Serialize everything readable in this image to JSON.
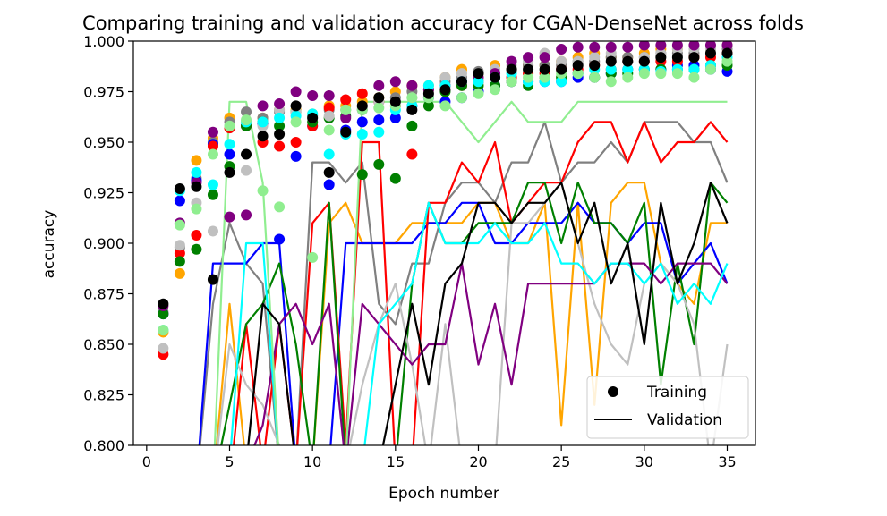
{
  "chart_data": {
    "type": "scatter+line",
    "title": "Comparing training and validation accuracy for CGAN-DenseNet across folds",
    "xlabel": "Epoch number",
    "ylabel": "accuracy",
    "xlim": [
      -0.8,
      36.7
    ],
    "ylim": [
      0.8,
      1.0
    ],
    "xticks": [
      0,
      5,
      10,
      15,
      20,
      25,
      30,
      35
    ],
    "yticks": [
      0.8,
      0.825,
      0.85,
      0.875,
      0.9,
      0.925,
      0.95,
      0.975,
      1.0
    ],
    "ytick_labels": [
      "0.800",
      "0.825",
      "0.850",
      "0.875",
      "0.900",
      "0.925",
      "0.950",
      "0.975",
      "1.000"
    ],
    "grid": false,
    "legend": {
      "placement": "lower-right",
      "entries": [
        {
          "label": "Training",
          "marker": "circle",
          "color": "#000000"
        },
        {
          "label": "Validation",
          "marker": "line",
          "color": "#000000"
        }
      ]
    },
    "series": [
      {
        "color": "#ffa500",
        "training": [
          0.856,
          0.885,
          0.941,
          0.952,
          0.962,
          0.958,
          0.962,
          0.966,
          0.966,
          0.964,
          0.968,
          0.968,
          0.97,
          0.972,
          0.975,
          0.978,
          0.978,
          0.982,
          0.986,
          0.984,
          0.988,
          0.986,
          0.988,
          0.988,
          0.99,
          0.992,
          0.994,
          0.992,
          0.992,
          0.994,
          0.996,
          0.996,
          0.992,
          0.996,
          0.998
        ],
        "validation": [
          0.78,
          0.78,
          0.78,
          0.78,
          0.87,
          0.79,
          0.79,
          0.79,
          0.79,
          0.79,
          0.91,
          0.92,
          0.9,
          0.9,
          0.9,
          0.91,
          0.91,
          0.91,
          0.91,
          0.92,
          0.92,
          0.9,
          0.9,
          0.92,
          0.81,
          0.92,
          0.82,
          0.92,
          0.93,
          0.93,
          0.89,
          0.88,
          0.87,
          0.91,
          0.91
        ]
      },
      {
        "color": "#808080",
        "training": [
          0.866,
          0.898,
          0.932,
          0.95,
          0.96,
          0.965,
          0.962,
          0.965,
          0.968,
          0.963,
          0.966,
          0.966,
          0.968,
          0.97,
          0.972,
          0.975,
          0.976,
          0.98,
          0.982,
          0.985,
          0.984,
          0.986,
          0.988,
          0.988,
          0.988,
          0.99,
          0.99,
          0.992,
          0.992,
          0.992,
          0.994,
          0.994,
          0.994,
          0.996,
          0.996
        ],
        "validation": [
          0.78,
          0.78,
          0.78,
          0.87,
          0.91,
          0.89,
          0.88,
          0.79,
          0.79,
          0.94,
          0.94,
          0.93,
          0.94,
          0.87,
          0.86,
          0.89,
          0.89,
          0.92,
          0.93,
          0.93,
          0.92,
          0.94,
          0.94,
          0.96,
          0.93,
          0.94,
          0.94,
          0.95,
          0.94,
          0.96,
          0.96,
          0.96,
          0.95,
          0.95,
          0.93
        ]
      },
      {
        "color": "#0000ff",
        "training": [
          0.865,
          0.921,
          0.931,
          0.949,
          0.944,
          0.958,
          0.959,
          0.902,
          0.943,
          0.958,
          0.929,
          0.956,
          0.96,
          0.961,
          0.962,
          0.968,
          0.972,
          0.97,
          0.972,
          0.975,
          0.978,
          0.98,
          0.98,
          0.98,
          0.98,
          0.982,
          0.982,
          0.984,
          0.986,
          0.986,
          0.986,
          0.988,
          0.988,
          0.986,
          0.985
        ],
        "validation": [
          0.78,
          0.78,
          0.78,
          0.89,
          0.89,
          0.89,
          0.9,
          0.9,
          0.79,
          0.79,
          0.79,
          0.9,
          0.9,
          0.9,
          0.9,
          0.9,
          0.91,
          0.91,
          0.92,
          0.92,
          0.9,
          0.9,
          0.91,
          0.91,
          0.91,
          0.92,
          0.91,
          0.91,
          0.9,
          0.91,
          0.91,
          0.88,
          0.89,
          0.9,
          0.88
        ]
      },
      {
        "color": "#ff0000",
        "training": [
          0.845,
          0.895,
          0.904,
          0.948,
          0.957,
          0.958,
          0.95,
          0.948,
          0.95,
          0.958,
          0.967,
          0.971,
          0.974,
          0.97,
          0.968,
          0.944,
          0.976,
          0.978,
          0.978,
          0.98,
          0.982,
          0.982,
          0.984,
          0.984,
          0.986,
          0.986,
          0.988,
          0.986,
          0.99,
          0.99,
          0.99,
          0.99,
          0.992,
          0.992,
          0.994
        ],
        "validation": [
          0.78,
          0.78,
          0.78,
          0.78,
          0.78,
          0.86,
          0.79,
          0.86,
          0.79,
          0.91,
          0.92,
          0.8,
          0.95,
          0.95,
          0.79,
          0.79,
          0.92,
          0.92,
          0.94,
          0.93,
          0.95,
          0.91,
          0.92,
          0.93,
          0.93,
          0.95,
          0.96,
          0.96,
          0.94,
          0.96,
          0.94,
          0.95,
          0.95,
          0.96,
          0.95
        ]
      },
      {
        "color": "#008000",
        "training": [
          0.865,
          0.891,
          0.897,
          0.924,
          0.938,
          0.958,
          0.96,
          0.958,
          0.965,
          0.96,
          0.962,
          0.963,
          0.934,
          0.939,
          0.932,
          0.958,
          0.968,
          0.975,
          0.978,
          0.978,
          0.978,
          0.98,
          0.978,
          0.982,
          0.982,
          0.984,
          0.982,
          0.984,
          0.984,
          0.986,
          0.986,
          0.986,
          0.986,
          0.988,
          0.988
        ],
        "validation": [
          0.78,
          0.78,
          0.78,
          0.78,
          0.82,
          0.86,
          0.87,
          0.89,
          0.85,
          0.79,
          0.92,
          0.79,
          0.79,
          0.79,
          0.79,
          0.88,
          0.92,
          0.9,
          0.9,
          0.91,
          0.91,
          0.91,
          0.93,
          0.93,
          0.9,
          0.93,
          0.91,
          0.91,
          0.9,
          0.92,
          0.83,
          0.89,
          0.85,
          0.93,
          0.92
        ]
      },
      {
        "color": "#c0c0c0",
        "training": [
          0.848,
          0.899,
          0.92,
          0.906,
          0.958,
          0.936,
          0.958,
          0.966,
          0.965,
          0.962,
          0.963,
          0.966,
          0.967,
          0.97,
          0.97,
          0.972,
          0.976,
          0.982,
          0.984,
          0.984,
          0.986,
          0.988,
          0.99,
          0.994,
          0.99,
          0.99,
          0.992,
          0.994,
          0.99,
          0.992,
          0.994,
          0.996,
          0.996,
          0.996,
          0.998
        ],
        "validation": [
          0.78,
          0.78,
          0.78,
          0.78,
          0.85,
          0.83,
          0.82,
          0.8,
          0.79,
          0.79,
          0.79,
          0.79,
          0.83,
          0.86,
          0.88,
          0.84,
          0.79,
          0.86,
          0.79,
          0.8,
          0.79,
          0.91,
          0.91,
          0.92,
          0.93,
          0.9,
          0.87,
          0.85,
          0.84,
          0.88,
          0.89,
          0.88,
          0.86,
          0.79,
          0.85
        ]
      },
      {
        "color": "#800080",
        "training": [
          0.869,
          0.91,
          0.93,
          0.955,
          0.913,
          0.914,
          0.968,
          0.969,
          0.975,
          0.973,
          0.973,
          0.962,
          0.966,
          0.978,
          0.98,
          0.978,
          0.976,
          0.978,
          0.98,
          0.982,
          0.984,
          0.99,
          0.992,
          0.992,
          0.996,
          0.997,
          0.997,
          0.997,
          0.997,
          0.998,
          0.998,
          0.998,
          0.998,
          0.998,
          0.998
        ],
        "validation": [
          0.78,
          0.78,
          0.78,
          0.78,
          0.78,
          0.79,
          0.81,
          0.86,
          0.87,
          0.85,
          0.87,
          0.79,
          0.87,
          0.86,
          0.85,
          0.84,
          0.85,
          0.85,
          0.89,
          0.84,
          0.87,
          0.83,
          0.88,
          0.88,
          0.88,
          0.88,
          0.88,
          0.89,
          0.89,
          0.89,
          0.88,
          0.89,
          0.89,
          0.89,
          0.88
        ]
      },
      {
        "color": "#00ffff",
        "training": [
          0.857,
          0.926,
          0.935,
          0.929,
          0.949,
          0.96,
          0.96,
          0.962,
          0.963,
          0.964,
          0.944,
          0.954,
          0.954,
          0.955,
          0.966,
          0.968,
          0.978,
          0.978,
          0.98,
          0.98,
          0.982,
          0.984,
          0.98,
          0.98,
          0.98,
          0.984,
          0.986,
          0.986,
          0.986,
          0.986,
          0.985,
          0.986,
          0.986,
          0.988,
          0.992
        ],
        "validation": [
          0.78,
          0.78,
          0.78,
          0.78,
          0.79,
          0.9,
          0.9,
          0.79,
          0.79,
          0.79,
          0.79,
          0.79,
          0.79,
          0.86,
          0.87,
          0.88,
          0.92,
          0.9,
          0.9,
          0.9,
          0.91,
          0.9,
          0.9,
          0.91,
          0.89,
          0.89,
          0.88,
          0.89,
          0.89,
          0.88,
          0.89,
          0.87,
          0.88,
          0.87,
          0.89
        ]
      },
      {
        "color": "#90ee90",
        "training": [
          0.857,
          0.909,
          0.917,
          0.944,
          0.958,
          0.961,
          0.926,
          0.918,
          0.96,
          0.893,
          0.956,
          0.966,
          0.966,
          0.967,
          0.968,
          0.972,
          0.972,
          0.968,
          0.972,
          0.974,
          0.976,
          0.98,
          0.982,
          0.982,
          0.984,
          0.984,
          0.982,
          0.98,
          0.982,
          0.984,
          0.984,
          0.984,
          0.982,
          0.986,
          0.99
        ],
        "validation": [
          0.78,
          0.78,
          0.78,
          0.78,
          0.97,
          0.97,
          0.93,
          0.79,
          0.79,
          0.79,
          0.79,
          0.79,
          0.97,
          0.97,
          0.97,
          0.97,
          0.97,
          0.97,
          0.96,
          0.95,
          0.96,
          0.97,
          0.96,
          0.96,
          0.96,
          0.97,
          0.97,
          0.97,
          0.97,
          0.97,
          0.97,
          0.97,
          0.97,
          0.97,
          0.97
        ]
      },
      {
        "color": "#000000",
        "training": [
          0.87,
          0.927,
          0.928,
          0.882,
          0.935,
          0.944,
          0.953,
          0.954,
          0.968,
          0.962,
          0.935,
          0.955,
          0.968,
          0.972,
          0.97,
          0.966,
          0.974,
          0.976,
          0.98,
          0.984,
          0.982,
          0.986,
          0.986,
          0.986,
          0.986,
          0.988,
          0.988,
          0.99,
          0.99,
          0.99,
          0.992,
          0.992,
          0.992,
          0.994,
          0.994
        ],
        "validation": [
          0.78,
          0.78,
          0.78,
          0.78,
          0.79,
          0.79,
          0.87,
          0.86,
          0.79,
          0.79,
          0.79,
          0.79,
          0.79,
          0.79,
          0.83,
          0.87,
          0.83,
          0.88,
          0.89,
          0.92,
          0.92,
          0.91,
          0.92,
          0.92,
          0.93,
          0.9,
          0.92,
          0.88,
          0.9,
          0.85,
          0.92,
          0.88,
          0.9,
          0.93,
          0.91
        ]
      }
    ]
  }
}
